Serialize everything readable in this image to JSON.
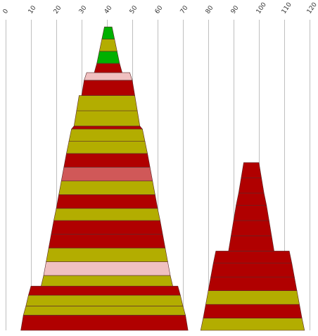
{
  "chart_data": {
    "type": "bar",
    "orientation": "stacked-tapered-columns",
    "x_ticks": [
      0,
      10,
      20,
      30,
      40,
      50,
      60,
      70,
      80,
      90,
      100,
      110,
      120
    ],
    "xlim": [
      0,
      120
    ],
    "ylim": [
      0,
      100
    ],
    "grid": true,
    "legend": "none",
    "colors": {
      "red": "#b00000",
      "olive": "#b3ad00",
      "green": "#00b000",
      "pink": "#f0c0c0",
      "rose": "#d05858"
    },
    "series": [
      {
        "segments": [
          {
            "y0": 0,
            "y1": 5,
            "xl": 6,
            "xr": 72,
            "color": "red"
          },
          {
            "y0": 5,
            "y1": 8,
            "xl": 7,
            "xr": 71,
            "color": "olive"
          },
          {
            "y0": 8,
            "y1": 11.5,
            "xl": 8,
            "xr": 70,
            "color": "olive"
          },
          {
            "y0": 11.5,
            "y1": 14.5,
            "xl": 9,
            "xr": 69,
            "color": "red"
          },
          {
            "y0": 14.5,
            "y1": 18,
            "xl": 14,
            "xr": 66,
            "color": "olive"
          },
          {
            "y0": 18,
            "y1": 22.5,
            "xl": 15,
            "xr": 65,
            "color": "pink"
          },
          {
            "y0": 22.5,
            "y1": 27,
            "xl": 16,
            "xr": 64,
            "color": "olive"
          },
          {
            "y0": 27,
            "y1": 31.5,
            "xl": 17,
            "xr": 63,
            "color": "red"
          },
          {
            "y0": 31.5,
            "y1": 36,
            "xl": 18,
            "xr": 62,
            "color": "red"
          },
          {
            "y0": 36,
            "y1": 40,
            "xl": 19,
            "xr": 61,
            "color": "olive"
          },
          {
            "y0": 40,
            "y1": 44.5,
            "xl": 20,
            "xr": 60,
            "color": "red"
          },
          {
            "y0": 44.5,
            "y1": 49,
            "xl": 21,
            "xr": 59,
            "color": "olive"
          },
          {
            "y0": 49,
            "y1": 53.5,
            "xl": 22,
            "xr": 58,
            "color": "rose"
          },
          {
            "y0": 53.5,
            "y1": 58,
            "xl": 23,
            "xr": 57,
            "color": "red"
          },
          {
            "y0": 58,
            "y1": 62,
            "xl": 24,
            "xr": 56,
            "color": "olive"
          },
          {
            "y0": 62,
            "y1": 66,
            "xl": 25,
            "xr": 55,
            "color": "olive"
          },
          {
            "y0": 66,
            "y1": 67,
            "xl": 26,
            "xr": 54,
            "color": "red"
          },
          {
            "y0": 67,
            "y1": 72,
            "xl": 27,
            "xr": 53,
            "color": "olive"
          },
          {
            "y0": 72,
            "y1": 77,
            "xl": 28,
            "xr": 52,
            "color": "olive"
          },
          {
            "y0": 77,
            "y1": 82,
            "xl": 30,
            "xr": 51,
            "color": "red"
          },
          {
            "y0": 82,
            "y1": 84.5,
            "xl": 31,
            "xr": 50,
            "color": "pink"
          },
          {
            "y0": 84.5,
            "y1": 87.5,
            "xl": 35,
            "xr": 46,
            "color": "red"
          },
          {
            "y0": 87.5,
            "y1": 91.5,
            "xl": 36,
            "xr": 45,
            "color": "green"
          },
          {
            "y0": 91.5,
            "y1": 95.5,
            "xl": 37,
            "xr": 44,
            "color": "olive"
          },
          {
            "y0": 95.5,
            "y1": 99.5,
            "xl": 38,
            "xr": 43,
            "color": "green"
          }
        ]
      },
      {
        "segments": [
          {
            "y0": 0,
            "y1": 4,
            "xl": 77,
            "xr": 118,
            "color": "olive"
          },
          {
            "y0": 4,
            "y1": 8.5,
            "xl": 78,
            "xr": 117,
            "color": "red"
          },
          {
            "y0": 8.5,
            "y1": 13,
            "xl": 79,
            "xr": 116,
            "color": "olive"
          },
          {
            "y0": 13,
            "y1": 17.5,
            "xl": 80,
            "xr": 115,
            "color": "red"
          },
          {
            "y0": 17.5,
            "y1": 22,
            "xl": 81,
            "xr": 114,
            "color": "red"
          },
          {
            "y0": 22,
            "y1": 26,
            "xl": 82,
            "xr": 113,
            "color": "red"
          },
          {
            "y0": 26,
            "y1": 31,
            "xl": 88,
            "xr": 106,
            "color": "red"
          },
          {
            "y0": 31,
            "y1": 36,
            "xl": 89,
            "xr": 105,
            "color": "red"
          },
          {
            "y0": 36,
            "y1": 41,
            "xl": 90,
            "xr": 104,
            "color": "red"
          },
          {
            "y0": 41,
            "y1": 45,
            "xl": 91,
            "xr": 103,
            "color": "red"
          },
          {
            "y0": 45,
            "y1": 50,
            "xl": 92,
            "xr": 102,
            "color": "red"
          },
          {
            "y0": 50,
            "y1": 55,
            "xl": 93,
            "xr": 101,
            "color": "red"
          }
        ]
      }
    ]
  }
}
